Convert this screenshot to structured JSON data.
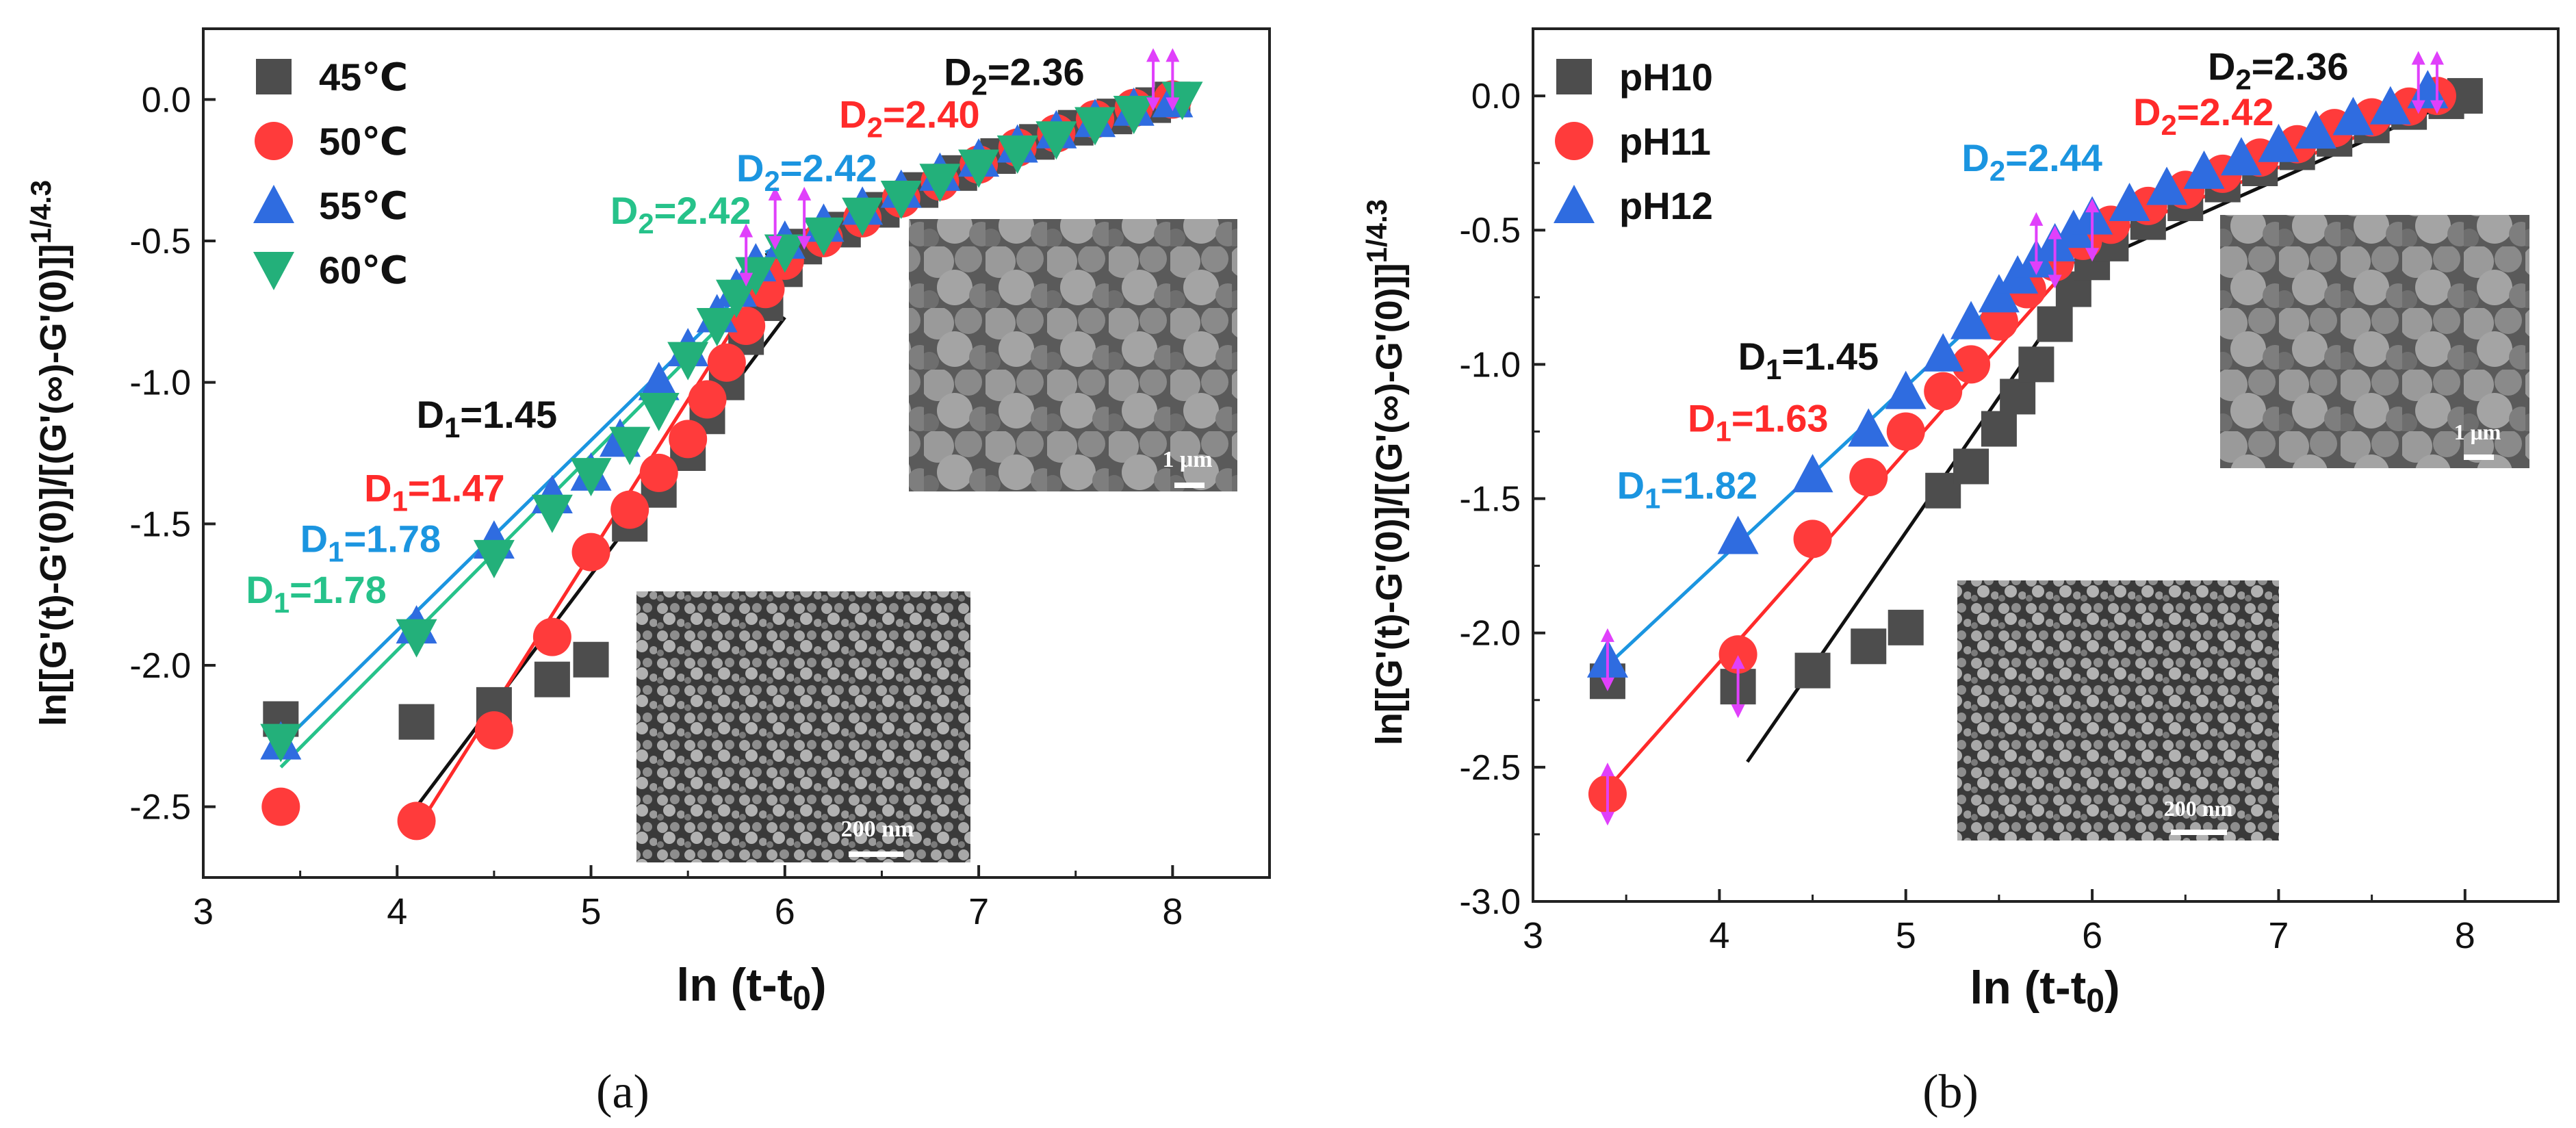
{
  "chart_data": [
    {
      "panel": "(a)",
      "type": "scatter",
      "xlabel": "ln (t-t",
      "xlabel_sub": "0",
      "xlabel_end": ")",
      "ylabel": "ln[[G'(t)-G'(0)]/[(G'(∞)-G'(0)]]",
      "ylabel_sup": "1/4.3",
      "xlim": [
        3,
        8.5
      ],
      "ylim": [
        -2.75,
        0.25
      ],
      "xticks": [
        3,
        4,
        5,
        6,
        7,
        8
      ],
      "yticks": [
        -2.5,
        -2.0,
        -1.5,
        -1.0,
        -0.5,
        0.0
      ],
      "ytick_labels": [
        "-2.5",
        "-2.0",
        "-1.5",
        "-1.0",
        "-0.5",
        "0.0"
      ],
      "xtick_labels": [
        "3",
        "4",
        "5",
        "6",
        "7",
        "8"
      ],
      "legend_position": "top-left",
      "series": [
        {
          "name": "45℃",
          "marker": "square",
          "color": "#4d4d4d",
          "x": [
            3.4,
            4.1,
            4.5,
            4.8,
            5.0,
            5.2,
            5.35,
            5.5,
            5.6,
            5.7,
            5.8,
            5.9,
            6.0,
            6.1,
            6.3,
            6.5,
            6.7,
            6.9,
            7.1,
            7.3,
            7.5,
            7.7,
            7.9,
            8.0
          ],
          "y": [
            -2.19,
            -2.2,
            -2.14,
            -2.05,
            -1.98,
            -1.5,
            -1.38,
            -1.25,
            -1.12,
            -1.0,
            -0.84,
            -0.72,
            -0.6,
            -0.52,
            -0.46,
            -0.39,
            -0.32,
            -0.26,
            -0.2,
            -0.15,
            -0.1,
            -0.06,
            -0.02,
            0.0
          ]
        },
        {
          "name": "50℃",
          "marker": "circle",
          "color": "#ff3b3b",
          "x": [
            3.4,
            4.1,
            4.5,
            4.8,
            5.0,
            5.2,
            5.35,
            5.5,
            5.6,
            5.7,
            5.8,
            5.9,
            6.0,
            6.2,
            6.4,
            6.6,
            6.8,
            7.0,
            7.2,
            7.4,
            7.6,
            7.8,
            8.0
          ],
          "y": [
            -2.5,
            -2.55,
            -2.23,
            -1.9,
            -1.6,
            -1.45,
            -1.32,
            -1.2,
            -1.06,
            -0.93,
            -0.8,
            -0.67,
            -0.57,
            -0.49,
            -0.42,
            -0.35,
            -0.29,
            -0.23,
            -0.17,
            -0.12,
            -0.07,
            -0.03,
            0.0
          ]
        },
        {
          "name": "55℃",
          "marker": "triangle-up",
          "color": "#2f6ce0",
          "x": [
            3.4,
            4.1,
            4.5,
            4.8,
            5.0,
            5.15,
            5.35,
            5.5,
            5.65,
            5.75,
            5.85,
            6.0,
            6.2,
            6.4,
            6.6,
            6.8,
            7.0,
            7.2,
            7.4,
            7.6,
            7.8,
            8.0
          ],
          "y": [
            -2.27,
            -1.86,
            -1.56,
            -1.4,
            -1.32,
            -1.2,
            -1.0,
            -0.88,
            -0.76,
            -0.67,
            -0.58,
            -0.5,
            -0.44,
            -0.38,
            -0.32,
            -0.26,
            -0.21,
            -0.16,
            -0.11,
            -0.07,
            -0.03,
            0.0
          ]
        },
        {
          "name": "60℃",
          "marker": "triangle-down",
          "color": "#23b07a",
          "x": [
            3.4,
            4.1,
            4.5,
            4.8,
            5.0,
            5.2,
            5.35,
            5.5,
            5.65,
            5.75,
            5.85,
            6.0,
            6.2,
            6.4,
            6.6,
            6.8,
            7.0,
            7.2,
            7.4,
            7.6,
            7.8,
            8.05
          ],
          "y": [
            -2.27,
            -1.9,
            -1.62,
            -1.46,
            -1.33,
            -1.22,
            -1.1,
            -0.92,
            -0.8,
            -0.7,
            -0.62,
            -0.54,
            -0.48,
            -0.41,
            -0.35,
            -0.29,
            -0.24,
            -0.19,
            -0.14,
            -0.09,
            -0.05,
            0.0
          ]
        }
      ],
      "fits": [
        {
          "color": "#111111",
          "x": [
            4.1,
            6.0
          ],
          "y": [
            -2.5,
            -0.77
          ]
        },
        {
          "color": "#ff2a2a",
          "x": [
            4.1,
            6.0
          ],
          "y": [
            -2.58,
            -0.52
          ]
        },
        {
          "color": "#1b95e0",
          "x": [
            3.4,
            5.9
          ],
          "y": [
            -2.28,
            -0.6
          ]
        },
        {
          "color": "#26c28a",
          "x": [
            3.4,
            5.9
          ],
          "y": [
            -2.36,
            -0.64
          ]
        },
        {
          "color": "#111111",
          "x": [
            5.9,
            8.0
          ],
          "y": [
            -0.55,
            0.0
          ]
        },
        {
          "color": "#ff2a2a",
          "x": [
            5.9,
            8.0
          ],
          "y": [
            -0.56,
            0.0
          ]
        },
        {
          "color": "#1b95e0",
          "x": [
            5.9,
            8.0
          ],
          "y": [
            -0.54,
            0.0
          ]
        },
        {
          "color": "#26c28a",
          "x": [
            5.9,
            8.0
          ],
          "y": [
            -0.56,
            0.0
          ]
        }
      ],
      "boundary_arrows": [
        {
          "x": 5.8,
          "y": -0.55
        },
        {
          "x": 5.95,
          "y": -0.42
        },
        {
          "x": 6.1,
          "y": -0.42
        },
        {
          "x": 7.9,
          "y": 0.07
        },
        {
          "x": 8.0,
          "y": 0.07
        }
      ],
      "annotations": [
        {
          "label": "D",
          "sub": "2",
          "value": "=2.36",
          "color": "#111111",
          "x": 6.82,
          "y": 0.05
        },
        {
          "label": "D",
          "sub": "2",
          "value": "=2.40",
          "color": "#ff2a2a",
          "x": 6.28,
          "y": -0.1
        },
        {
          "label": "D",
          "sub": "2",
          "value": "=2.42",
          "color": "#1b95e0",
          "x": 5.75,
          "y": -0.29
        },
        {
          "label": "D",
          "sub": "2",
          "value": "=2.42",
          "color": "#26c28a",
          "x": 5.1,
          "y": -0.44
        },
        {
          "label": "D",
          "sub": "1",
          "value": "=1.45",
          "color": "#111111",
          "x": 4.1,
          "y": -1.16
        },
        {
          "label": "D",
          "sub": "1",
          "value": "=1.47",
          "color": "#ff2a2a",
          "x": 3.83,
          "y": -1.42
        },
        {
          "label": "D",
          "sub": "1",
          "value": "=1.78",
          "color": "#1b95e0",
          "x": 3.5,
          "y": -1.6
        },
        {
          "label": "D",
          "sub": "1",
          "value": "=1.78",
          "color": "#26c28a",
          "x": 3.22,
          "y": -1.78
        }
      ],
      "insets": [
        {
          "name": "sem-large-grains",
          "scale_label": "1 μm"
        },
        {
          "name": "sem-fine-network",
          "scale_label": "200 nm"
        }
      ]
    },
    {
      "panel": "(b)",
      "type": "scatter",
      "xlabel": "ln (t-t",
      "xlabel_sub": "0",
      "xlabel_end": ")",
      "ylabel": "ln[[G'(t)-G'(0)]/[(G'(∞)-G'(0)]]",
      "ylabel_sup": "1/4.3",
      "xlim": [
        3,
        8.5
      ],
      "ylim": [
        -3.0,
        0.25
      ],
      "xticks": [
        3,
        4,
        5,
        6,
        7,
        8
      ],
      "yticks": [
        -3.0,
        -2.5,
        -2.0,
        -1.5,
        -1.0,
        -0.5,
        0.0
      ],
      "ytick_labels": [
        "-3.0",
        "-2.5",
        "-2.0",
        "-1.5",
        "-1.0",
        "-0.5",
        "0.0"
      ],
      "xtick_labels": [
        "3",
        "4",
        "5",
        "6",
        "7",
        "8"
      ],
      "legend_position": "top-left",
      "series": [
        {
          "name": "pH10",
          "marker": "square",
          "color": "#4d4d4d",
          "x": [
            3.4,
            4.1,
            4.5,
            4.8,
            5.0,
            5.2,
            5.35,
            5.5,
            5.6,
            5.7,
            5.8,
            5.9,
            6.0,
            6.1,
            6.3,
            6.5,
            6.7,
            6.9,
            7.1,
            7.3,
            7.5,
            7.7,
            7.9,
            8.0
          ],
          "y": [
            -2.18,
            -2.2,
            -2.14,
            -2.05,
            -1.98,
            -1.47,
            -1.38,
            -1.24,
            -1.12,
            -1.0,
            -0.85,
            -0.72,
            -0.62,
            -0.55,
            -0.47,
            -0.4,
            -0.33,
            -0.27,
            -0.21,
            -0.16,
            -0.11,
            -0.06,
            -0.02,
            0.0
          ]
        },
        {
          "name": "pH11",
          "marker": "circle",
          "color": "#ff3b3b",
          "x": [
            3.4,
            4.1,
            4.5,
            4.8,
            5.0,
            5.2,
            5.35,
            5.5,
            5.65,
            5.8,
            5.95,
            6.1,
            6.3,
            6.5,
            6.7,
            6.9,
            7.1,
            7.3,
            7.5,
            7.7,
            7.85
          ],
          "y": [
            -2.6,
            -2.08,
            -1.65,
            -1.42,
            -1.25,
            -1.1,
            -1.0,
            -0.84,
            -0.72,
            -0.62,
            -0.54,
            -0.48,
            -0.41,
            -0.35,
            -0.29,
            -0.23,
            -0.18,
            -0.12,
            -0.08,
            -0.04,
            0.0
          ]
        },
        {
          "name": "pH12",
          "marker": "triangle-up",
          "color": "#2f6ce0",
          "x": [
            3.4,
            4.1,
            4.5,
            4.8,
            5.0,
            5.2,
            5.35,
            5.5,
            5.6,
            5.7,
            5.8,
            5.9,
            6.0,
            6.2,
            6.4,
            6.6,
            6.8,
            7.0,
            7.2,
            7.4,
            7.6,
            7.8
          ],
          "y": [
            -2.1,
            -1.64,
            -1.41,
            -1.24,
            -1.1,
            -0.96,
            -0.84,
            -0.74,
            -0.67,
            -0.61,
            -0.55,
            -0.5,
            -0.45,
            -0.4,
            -0.34,
            -0.28,
            -0.23,
            -0.18,
            -0.13,
            -0.08,
            -0.04,
            0.02
          ]
        }
      ],
      "fits": [
        {
          "color": "#111111",
          "x": [
            4.15,
            6.0
          ],
          "y": [
            -2.48,
            -0.62
          ]
        },
        {
          "color": "#ff2a2a",
          "x": [
            3.4,
            6.0
          ],
          "y": [
            -2.58,
            -0.54
          ]
        },
        {
          "color": "#1b95e0",
          "x": [
            3.4,
            5.9
          ],
          "y": [
            -2.12,
            -0.5
          ]
        },
        {
          "color": "#111111",
          "x": [
            6.0,
            8.0
          ],
          "y": [
            -0.62,
            0.0
          ]
        },
        {
          "color": "#ff2a2a",
          "x": [
            6.0,
            7.9
          ],
          "y": [
            -0.54,
            -0.02
          ]
        },
        {
          "color": "#1b95e0",
          "x": [
            5.9,
            7.9
          ],
          "y": [
            -0.5,
            0.04
          ]
        }
      ],
      "boundary_arrows": [
        {
          "x": 3.4,
          "y": -2.1
        },
        {
          "x": 3.4,
          "y": -2.6
        },
        {
          "x": 4.1,
          "y": -2.2
        },
        {
          "x": 5.7,
          "y": -0.55
        },
        {
          "x": 5.8,
          "y": -0.6
        },
        {
          "x": 6.0,
          "y": -0.5
        },
        {
          "x": 7.75,
          "y": 0.05
        },
        {
          "x": 7.85,
          "y": 0.05
        }
      ],
      "annotations": [
        {
          "label": "D",
          "sub": "2",
          "value": "=2.36",
          "color": "#111111",
          "x": 6.62,
          "y": 0.06
        },
        {
          "label": "D",
          "sub": "2",
          "value": "=2.42",
          "color": "#ff2a2a",
          "x": 6.22,
          "y": -0.11
        },
        {
          "label": "D",
          "sub": "2",
          "value": "=2.44",
          "color": "#1b95e0",
          "x": 5.3,
          "y": -0.28
        },
        {
          "label": "D",
          "sub": "1",
          "value": "=1.45",
          "color": "#111111",
          "x": 4.1,
          "y": -1.02
        },
        {
          "label": "D",
          "sub": "1",
          "value": "=1.63",
          "color": "#ff2a2a",
          "x": 3.83,
          "y": -1.25
        },
        {
          "label": "D",
          "sub": "1",
          "value": "=1.82",
          "color": "#1b95e0",
          "x": 3.45,
          "y": -1.5
        }
      ],
      "insets": [
        {
          "name": "sem-large-grains",
          "scale_label": "1 μm"
        },
        {
          "name": "sem-fine-network",
          "scale_label": "200 nm"
        }
      ]
    }
  ]
}
